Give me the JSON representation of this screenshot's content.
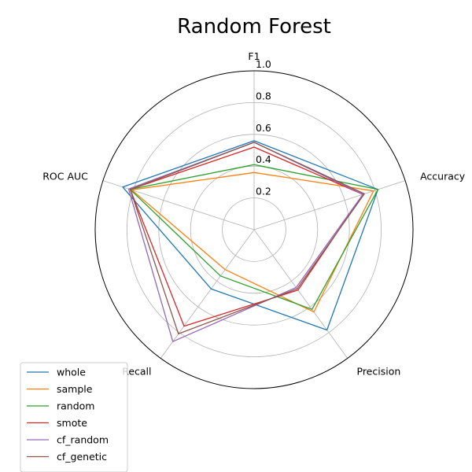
{
  "chart_data": {
    "type": "radar",
    "title": "Random Forest",
    "axes": [
      "F1",
      "Accuracy",
      "Precision",
      "Recall",
      "ROC AUC"
    ],
    "rlim": [
      0,
      1.0
    ],
    "rticks": [
      0.2,
      0.4,
      0.6,
      0.8,
      1.0
    ],
    "rtick_labels": [
      "0.2",
      "0.4",
      "0.6",
      "0.8",
      "1.0"
    ],
    "grid": true,
    "legend_position": "lower-left",
    "series": [
      {
        "name": "whole",
        "color": "#1f77b4",
        "values": [
          0.56,
          0.82,
          0.78,
          0.46,
          0.87
        ]
      },
      {
        "name": "sample",
        "color": "#ff7f0e",
        "values": [
          0.36,
          0.79,
          0.64,
          0.31,
          0.81
        ]
      },
      {
        "name": "random",
        "color": "#2ca02c",
        "values": [
          0.41,
          0.82,
          0.62,
          0.36,
          0.82
        ]
      },
      {
        "name": "smote",
        "color": "#d62728",
        "values": [
          0.52,
          0.72,
          0.47,
          0.75,
          0.82
        ]
      },
      {
        "name": "cf_random",
        "color": "#9467bd",
        "values": [
          0.55,
          0.72,
          0.45,
          0.87,
          0.83
        ]
      },
      {
        "name": "cf_genetic",
        "color": "#8c564b",
        "values": [
          0.55,
          0.73,
          0.46,
          0.81,
          0.82
        ]
      }
    ]
  }
}
